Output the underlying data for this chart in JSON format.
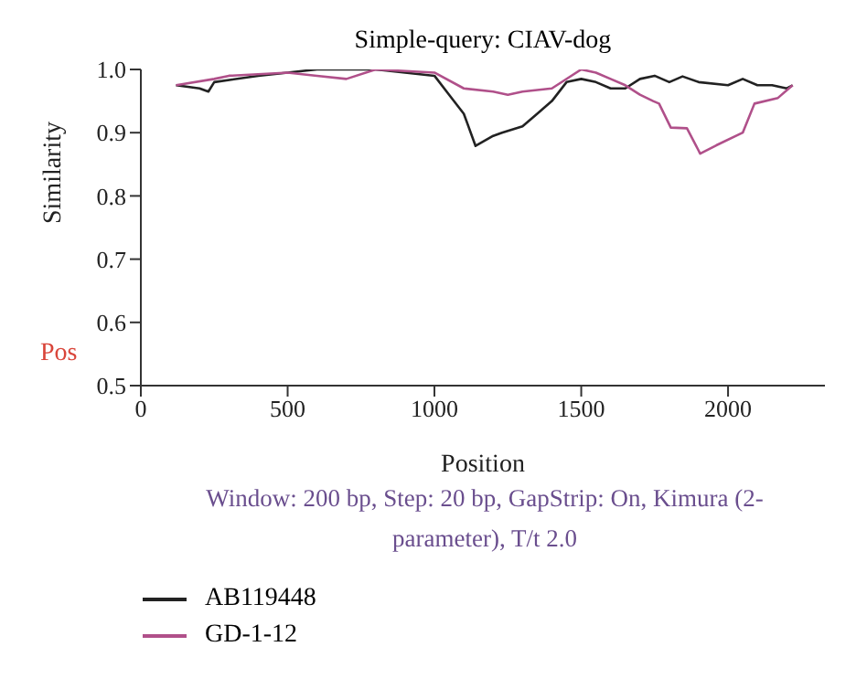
{
  "chart_data": {
    "type": "line",
    "title": "Simple-query: CIAV-dog",
    "xlabel": "Position",
    "ylabel": "Similarity",
    "xlim": [
      0,
      2330
    ],
    "xticks": [
      0,
      500,
      1000,
      1500,
      2000
    ],
    "ylim": [
      0.5,
      1.0
    ],
    "yticks": [
      0.5,
      0.6,
      0.7,
      0.8,
      0.9,
      {
        "value": 1,
        "label": "1.0"
      }
    ],
    "legend": "bottom left",
    "annotations": [
      "Window: 200 bp, Step: 20 bp, GapStrip: On, Kimura (2-parameter), T/t 2.0",
      "Pos"
    ],
    "series": [
      {
        "name": "AB119448",
        "color": "#222222",
        "x": [
          120,
          200,
          230,
          250,
          400,
          600,
          800,
          900,
          1000,
          1050,
          1100,
          1140,
          1200,
          1230,
          1300,
          1350,
          1400,
          1450,
          1500,
          1550,
          1600,
          1650,
          1700,
          1750,
          1800,
          1845,
          1900,
          2000,
          2050,
          2100,
          2150,
          2200,
          2220
        ],
        "values": [
          0.975,
          0.97,
          0.965,
          0.98,
          0.99,
          1.0,
          1.0,
          0.995,
          0.99,
          0.96,
          0.93,
          0.879,
          0.895,
          0.9,
          0.91,
          0.93,
          0.95,
          0.98,
          0.985,
          0.98,
          0.97,
          0.97,
          0.985,
          0.99,
          0.98,
          0.989,
          0.98,
          0.975,
          0.985,
          0.975,
          0.975,
          0.97,
          0.975
        ]
      },
      {
        "name": "GD-1-12",
        "color": "#b0508a",
        "x": [
          120,
          250,
          300,
          500,
          600,
          700,
          800,
          1000,
          1100,
          1200,
          1250,
          1300,
          1400,
          1500,
          1550,
          1600,
          1650,
          1700,
          1745,
          1765,
          1805,
          1860,
          1905,
          1960,
          2050,
          2090,
          2170,
          2220
        ],
        "values": [
          0.975,
          0.985,
          0.99,
          0.995,
          0.99,
          0.985,
          1.0,
          0.995,
          0.97,
          0.965,
          0.96,
          0.965,
          0.97,
          1.0,
          0.995,
          0.985,
          0.975,
          0.96,
          0.95,
          0.946,
          0.908,
          0.907,
          0.867,
          0.88,
          0.9,
          0.946,
          0.955,
          0.975
        ]
      }
    ]
  }
}
